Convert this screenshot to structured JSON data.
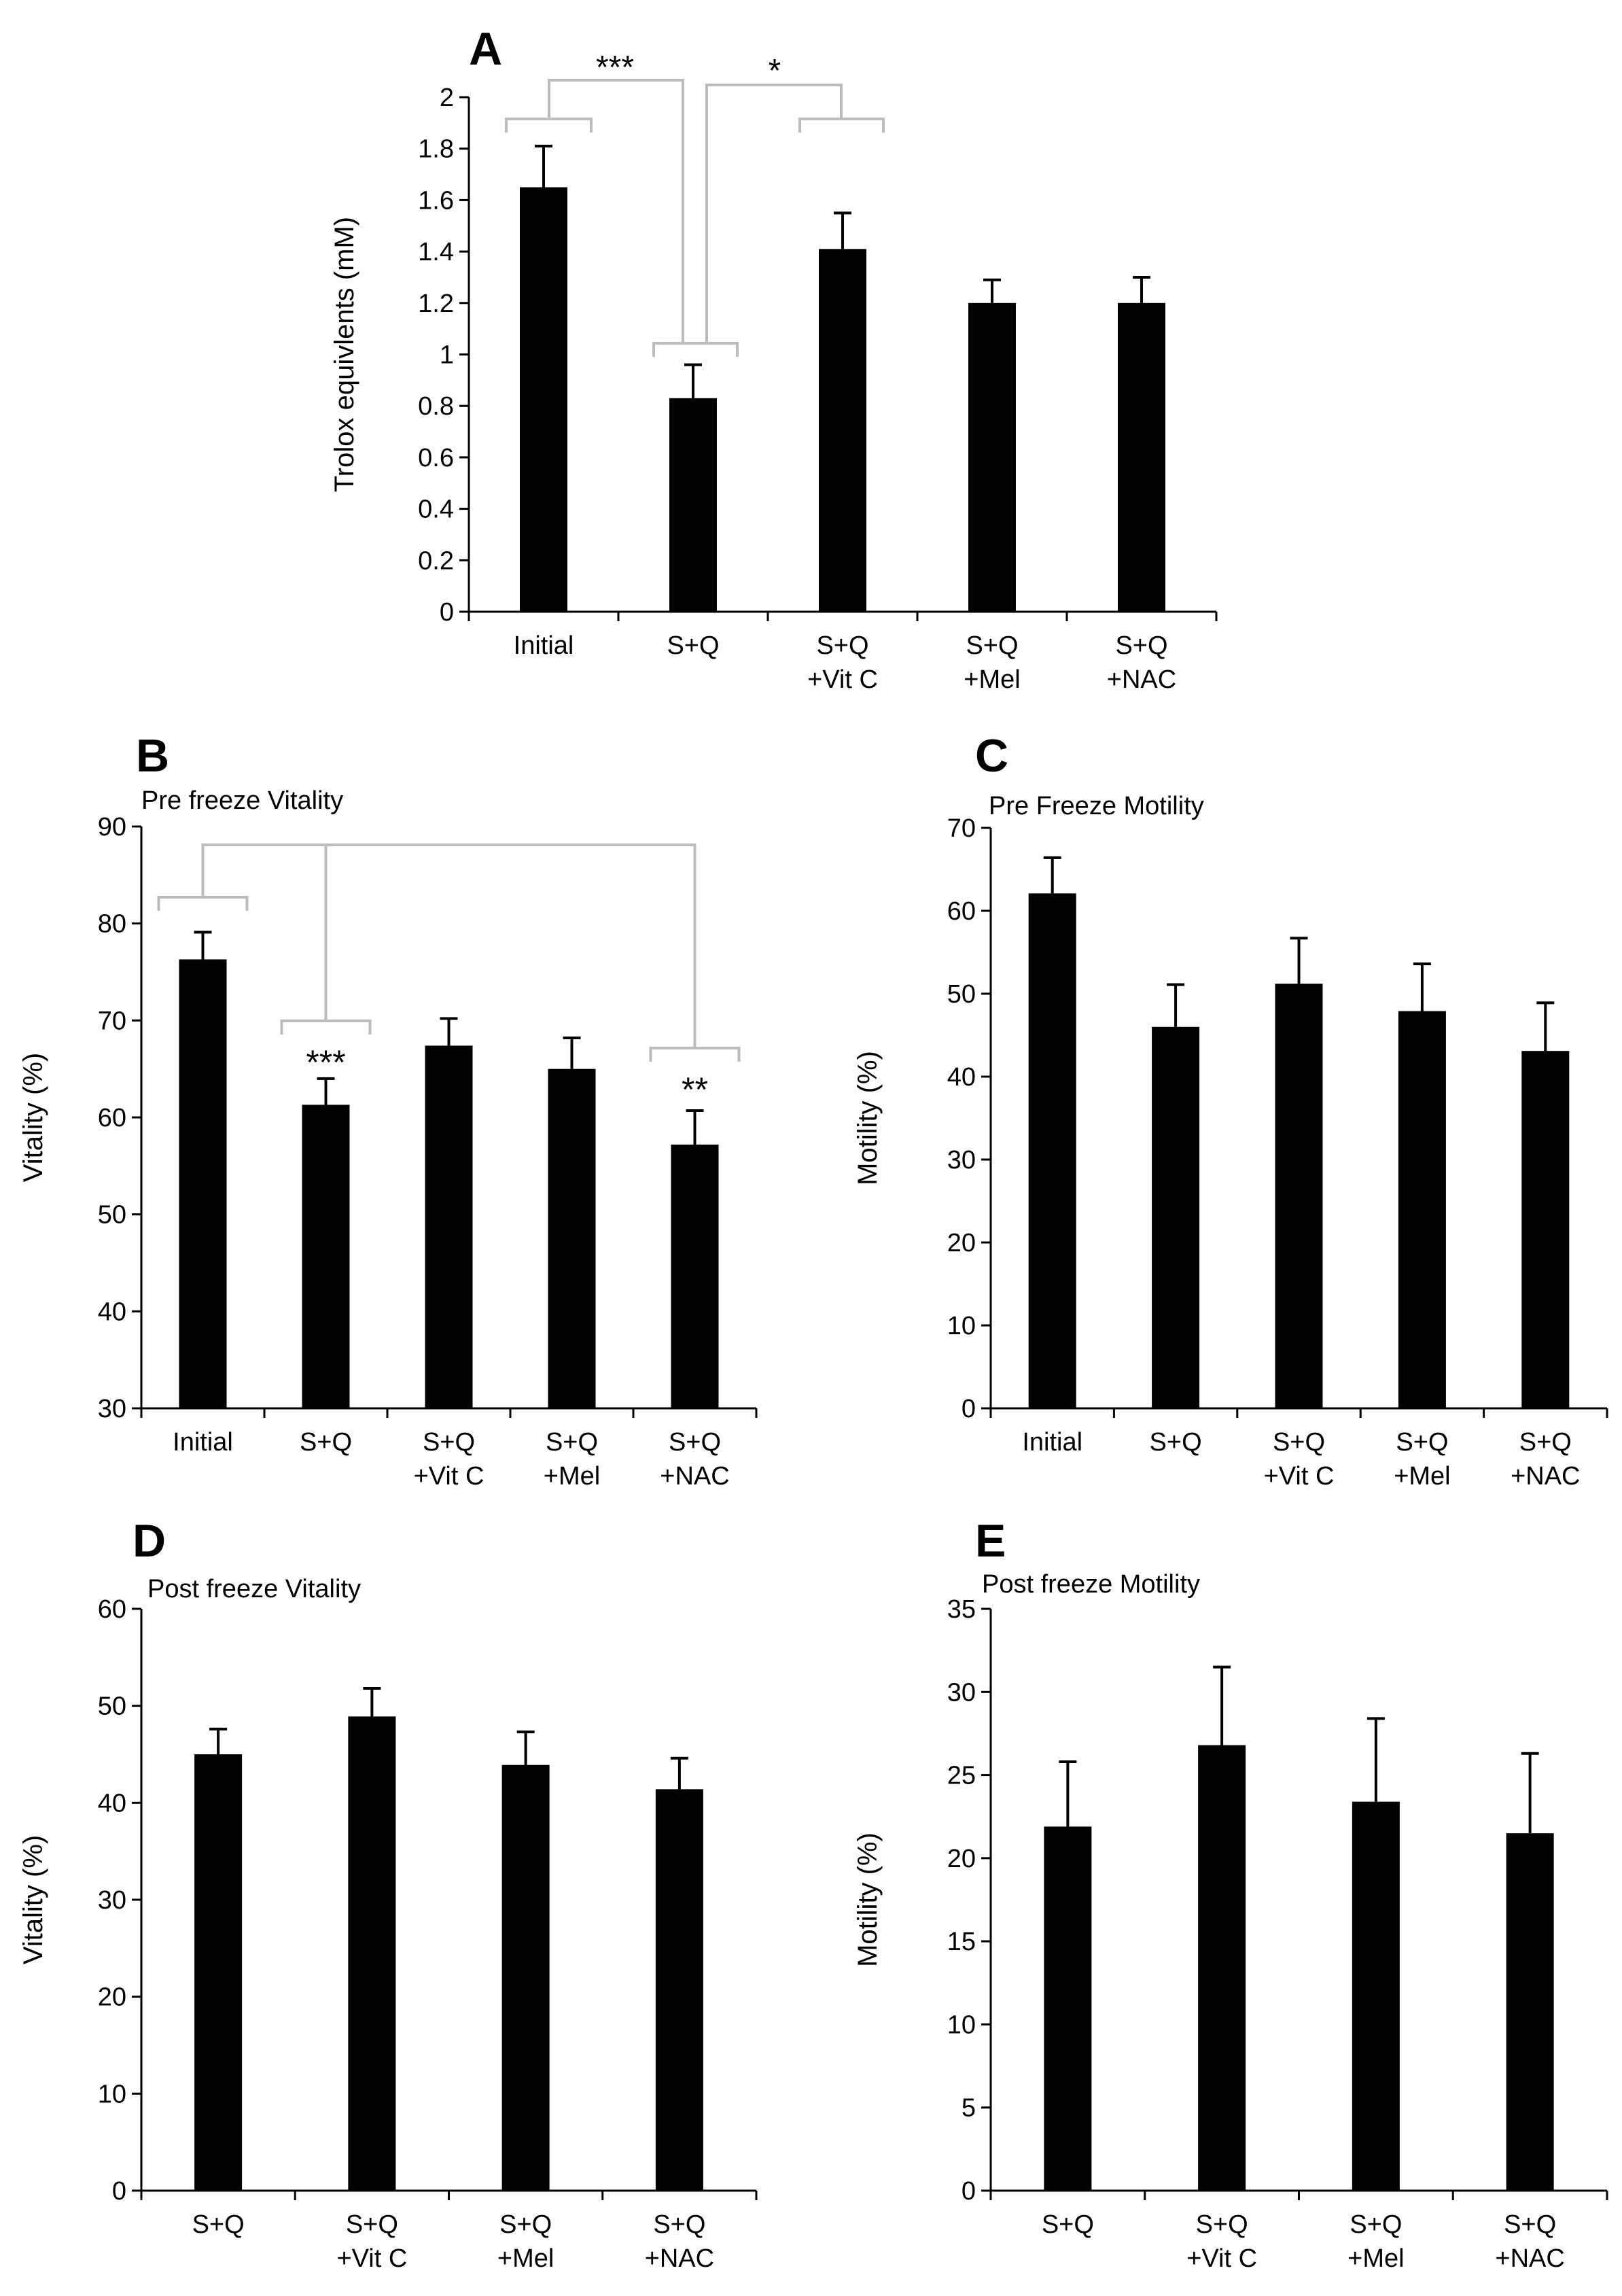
{
  "chart_data": [
    {
      "id": "A",
      "type": "bar",
      "panel_letter": "A",
      "title": "",
      "ylabel": "Trolox equivlents (mM)",
      "xlabel": "",
      "ylim": [
        0,
        2
      ],
      "yticks": [
        "0",
        "0.2",
        "0.4",
        "0.6",
        "0.8",
        "1",
        "1.2",
        "1.4",
        "1.6",
        "1.8",
        "2"
      ],
      "categories": [
        [
          "Initial"
        ],
        [
          "S+Q"
        ],
        [
          "S+Q",
          "+Vit C"
        ],
        [
          "S+Q",
          "+Mel"
        ],
        [
          "S+Q",
          "+NAC"
        ]
      ],
      "values": [
        1.65,
        0.83,
        1.41,
        1.2,
        1.2
      ],
      "errors": [
        0.16,
        0.13,
        0.14,
        0.09,
        0.1
      ],
      "significance": [
        {
          "from": 0,
          "to": 1,
          "label": "***"
        },
        {
          "from": 1,
          "to": 2,
          "label": "*"
        }
      ]
    },
    {
      "id": "B",
      "type": "bar",
      "panel_letter": "B",
      "title": "Pre freeze Vitality",
      "ylabel": "Vitality (%)",
      "xlabel": "",
      "ylim": [
        30,
        90
      ],
      "yticks": [
        "30",
        "40",
        "50",
        "60",
        "70",
        "80",
        "90"
      ],
      "categories": [
        [
          "Initial"
        ],
        [
          "S+Q"
        ],
        [
          "S+Q",
          "+Vit C"
        ],
        [
          "S+Q",
          "+Mel"
        ],
        [
          "S+Q",
          "+NAC"
        ]
      ],
      "values": [
        76.3,
        61.3,
        67.4,
        65,
        57.2
      ],
      "errors": [
        2.8,
        2.7,
        2.8,
        3.2,
        3.5
      ],
      "significance": [
        {
          "from": 0,
          "to": 1,
          "label": "***"
        },
        {
          "from": 0,
          "to": 4,
          "label": "**"
        }
      ]
    },
    {
      "id": "C",
      "type": "bar",
      "panel_letter": "C",
      "title": "Pre Freeze Motility",
      "ylabel": "Motility (%)",
      "xlabel": "",
      "ylim": [
        0,
        70
      ],
      "yticks": [
        "0",
        "10",
        "20",
        "30",
        "40",
        "50",
        "60",
        "70"
      ],
      "categories": [
        [
          "Initial"
        ],
        [
          "S+Q"
        ],
        [
          "S+Q",
          "+Vit C"
        ],
        [
          "S+Q",
          "+Mel"
        ],
        [
          "S+Q",
          "+NAC"
        ]
      ],
      "values": [
        62.1,
        46,
        51.2,
        47.9,
        43.1
      ],
      "errors": [
        4.3,
        5.1,
        5.5,
        5.7,
        5.8
      ],
      "significance": []
    },
    {
      "id": "D",
      "type": "bar",
      "panel_letter": "D",
      "title": "Post freeze Vitality",
      "ylabel": "Vitality (%)",
      "xlabel": "",
      "ylim": [
        0,
        60
      ],
      "yticks": [
        "0",
        "10",
        "20",
        "30",
        "40",
        "50",
        "60"
      ],
      "categories": [
        [
          "S+Q"
        ],
        [
          "S+Q",
          "+Vit C"
        ],
        [
          "S+Q",
          "+Mel"
        ],
        [
          "S+Q",
          "+NAC"
        ]
      ],
      "values": [
        45,
        48.9,
        43.9,
        41.4
      ],
      "errors": [
        2.6,
        2.9,
        3.4,
        3.2
      ],
      "significance": []
    },
    {
      "id": "E",
      "type": "bar",
      "panel_letter": "E",
      "title": "Post freeze Motility",
      "ylabel": "Motility (%)",
      "xlabel": "",
      "ylim": [
        0,
        35
      ],
      "yticks": [
        "0",
        "5",
        "10",
        "15",
        "20",
        "25",
        "30",
        "35"
      ],
      "categories": [
        [
          "S+Q"
        ],
        [
          "S+Q",
          "+Vit C"
        ],
        [
          "S+Q",
          "+Mel"
        ],
        [
          "S+Q",
          "+NAC"
        ]
      ],
      "values": [
        21.9,
        26.8,
        23.4,
        21.5
      ],
      "errors": [
        3.9,
        4.7,
        5,
        4.8
      ],
      "significance": []
    }
  ]
}
